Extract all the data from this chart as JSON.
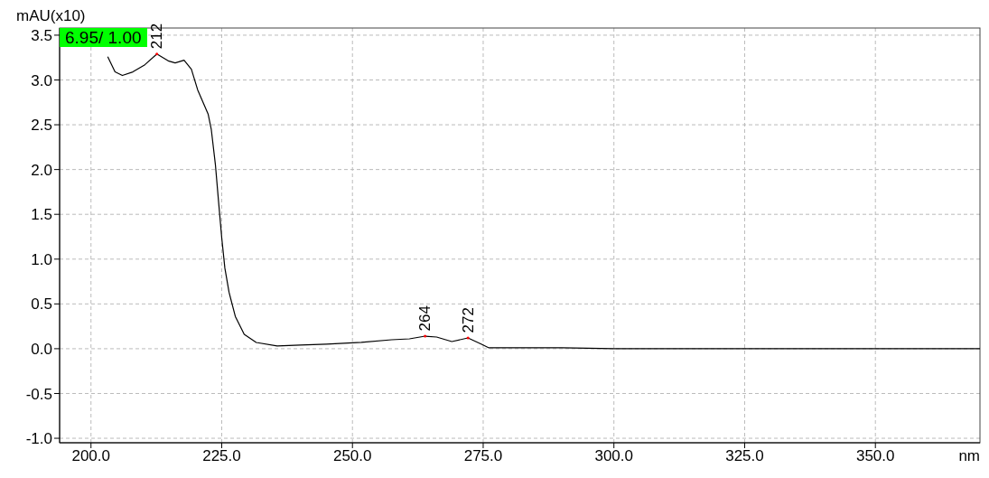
{
  "chart_data": {
    "type": "line",
    "xlabel": "nm",
    "ylabel": "mAU(x10)",
    "x": [
      203.2,
      204.6,
      206.0,
      208.0,
      210.3,
      212.6,
      214.9,
      216.1,
      217.8,
      219.2,
      220.4,
      222.4,
      223.0,
      223.8,
      224.4,
      225.0,
      225.6,
      226.4,
      227.6,
      229.3,
      231.6,
      235.6,
      240,
      245,
      251.7,
      257.5,
      260.9,
      263.9,
      266.1,
      269.0,
      272.1,
      274.7,
      276.1,
      280,
      290,
      300,
      310,
      320,
      330,
      340,
      350,
      360,
      370
    ],
    "series": [
      {
        "color": "#000000",
        "values": [
          3.26,
          3.09,
          3.05,
          3.09,
          3.17,
          3.29,
          3.21,
          3.19,
          3.22,
          3.12,
          2.89,
          2.62,
          2.45,
          2.05,
          1.64,
          1.24,
          0.9,
          0.63,
          0.36,
          0.16,
          0.07,
          0.03,
          0.04,
          0.05,
          0.07,
          0.1,
          0.11,
          0.14,
          0.13,
          0.08,
          0.12,
          0.05,
          0.01,
          0.01,
          0.01,
          0.0,
          0.0,
          0.0,
          0.0,
          0.0,
          0.0,
          0.0,
          0.0
        ]
      }
    ],
    "xlim": [
      194,
      370
    ],
    "ylim": [
      -1.05,
      3.58
    ],
    "xticks": [
      {
        "value": 200,
        "label": "200.0"
      },
      {
        "value": 225,
        "label": "225.0"
      },
      {
        "value": 250,
        "label": "250.0"
      },
      {
        "value": 275,
        "label": "275.0"
      },
      {
        "value": 300,
        "label": "300.0"
      },
      {
        "value": 325,
        "label": "325.0"
      },
      {
        "value": 350,
        "label": "350.0"
      }
    ],
    "yticks": [
      {
        "value": -1,
        "label": "-1.0"
      },
      {
        "value": -0.5,
        "label": "-0.5"
      },
      {
        "value": 0,
        "label": "0.0"
      },
      {
        "value": 0.5,
        "label": "0.5"
      },
      {
        "value": 1,
        "label": "1.0"
      },
      {
        "value": 1.5,
        "label": "1.5"
      },
      {
        "value": 2,
        "label": "2.0"
      },
      {
        "value": 2.5,
        "label": "2.5"
      },
      {
        "value": 3,
        "label": "3.0"
      },
      {
        "value": 3.5,
        "label": "3.5"
      }
    ],
    "annotations": [
      "6.95/ 1.00",
      {
        "text": "212",
        "x": 212.6,
        "y": 3.29
      },
      {
        "text": "264",
        "x": 263.9,
        "y": 0.14
      },
      {
        "text": "272",
        "x": 272.1,
        "y": 0.12
      }
    ],
    "grid": true,
    "legend": false,
    "marker": "none",
    "line_style": "solid"
  }
}
